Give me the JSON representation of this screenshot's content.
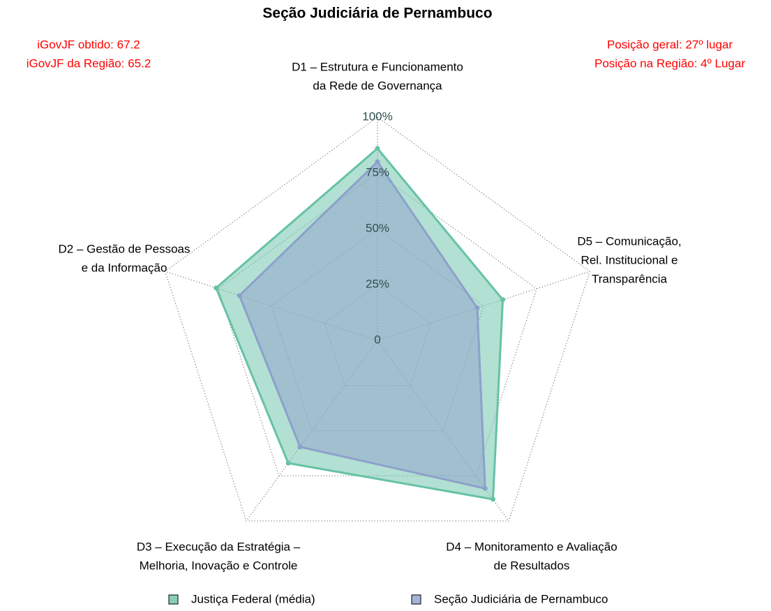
{
  "chart_data": {
    "type": "radar",
    "title": "Seção Judiciária de Pernambuco",
    "annotations": [
      "iGovJF obtido: 67.2",
      "iGovJF da Região: 65.2",
      "Posição geral: 27º lugar",
      "Posição na Região: 4º Lugar"
    ],
    "categories": [
      [
        "D1 – Estrutura e Funcionamento",
        "da Rede de Governança"
      ],
      [
        "D2 – Gestão de Pessoas",
        "e da Informação"
      ],
      [
        "D3 – Execução da Estratégia –",
        "Melhoria, Inovação e Controle"
      ],
      [
        "D4 – Monitoramento e Avaliação",
        "de Resultados"
      ],
      [
        "D5 – Comunicação,",
        "Rel. Institucional e",
        "Transparência"
      ]
    ],
    "series": [
      {
        "name": "Justiça Federal (média)",
        "color": "#66c2a5",
        "values": [
          86,
          76,
          68,
          88,
          59
        ]
      },
      {
        "name": "Seção Judiciária de Pernambuco",
        "color": "#8da0cb",
        "values": [
          80,
          65,
          59,
          82,
          47
        ]
      }
    ],
    "ylim": [
      0,
      100
    ],
    "yticks": [
      0,
      {
        "value": 25,
        "label": "25%"
      },
      {
        "value": 50,
        "label": "50%"
      },
      {
        "value": 75,
        "label": "75%"
      },
      {
        "value": 100,
        "label": "100%"
      }
    ],
    "grid": true,
    "legend": "bottom"
  }
}
